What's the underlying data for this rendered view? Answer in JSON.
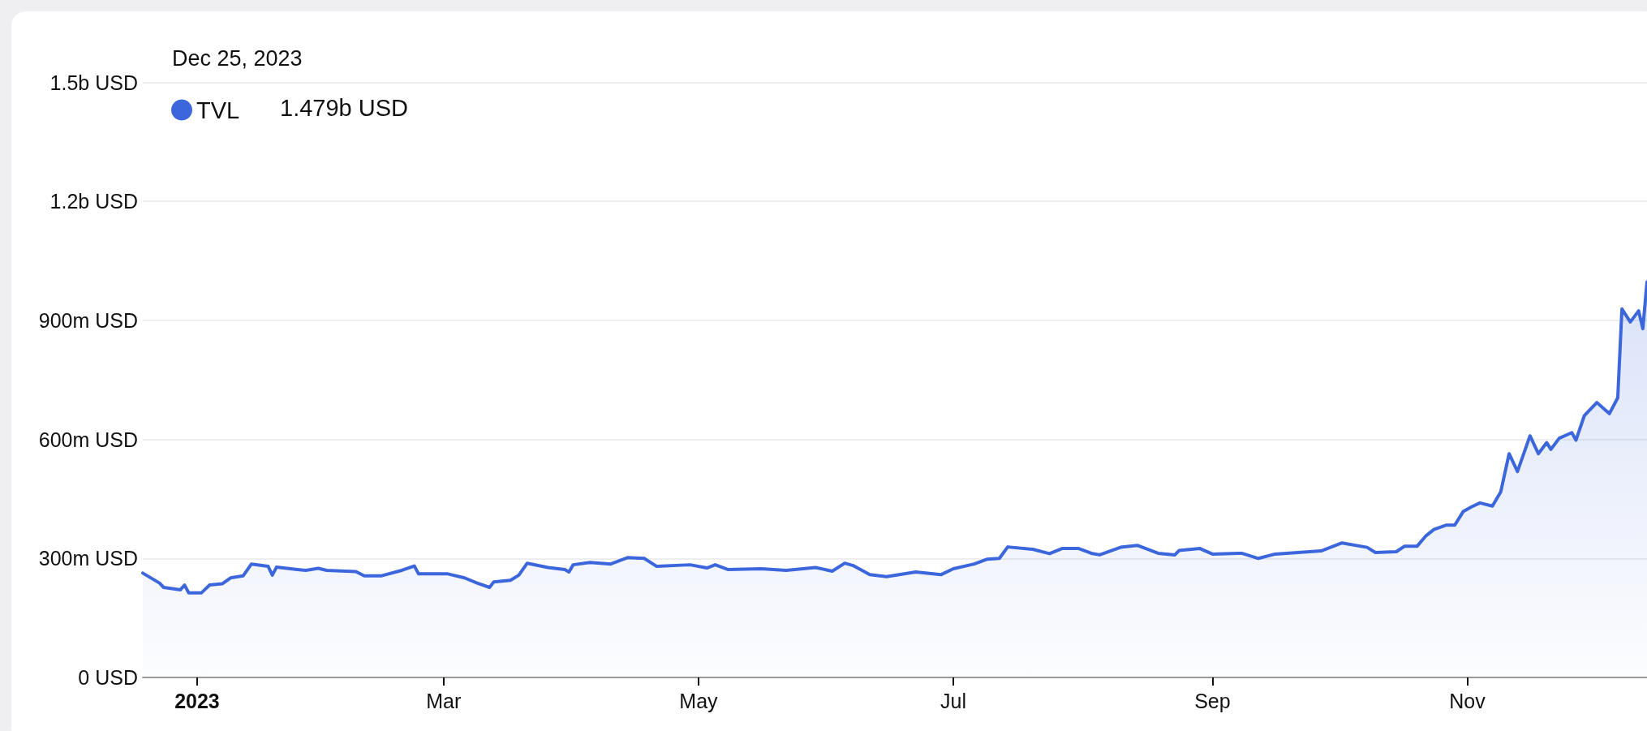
{
  "chart_data": {
    "type": "area",
    "annotations": [
      "Dec 25, 2023",
      "1.479b USD"
    ],
    "x": [
      "2022-12-19",
      "2022-12-23",
      "2022-12-24",
      "2022-12-28",
      "2022-12-29",
      "2022-12-30",
      "2023-01-02",
      "2023-01-04",
      "2023-01-07",
      "2023-01-09",
      "2023-01-12",
      "2023-01-14",
      "2023-01-18",
      "2023-01-19",
      "2023-01-20",
      "2023-01-25",
      "2023-01-27",
      "2023-01-30",
      "2023-02-01",
      "2023-02-08",
      "2023-02-10",
      "2023-02-14",
      "2023-02-19",
      "2023-02-22",
      "2023-02-23",
      "2023-03-02",
      "2023-03-06",
      "2023-03-09",
      "2023-03-12",
      "2023-03-13",
      "2023-03-17",
      "2023-03-19",
      "2023-03-21",
      "2023-03-26",
      "2023-03-30",
      "2023-03-31",
      "2023-04-01",
      "2023-04-05",
      "2023-04-10",
      "2023-04-14",
      "2023-04-18",
      "2023-04-21",
      "2023-04-29",
      "2023-05-03",
      "2023-05-05",
      "2023-05-08",
      "2023-05-16",
      "2023-05-22",
      "2023-05-29",
      "2023-06-02",
      "2023-06-05",
      "2023-06-07",
      "2023-06-11",
      "2023-06-15",
      "2023-06-22",
      "2023-06-28",
      "2023-07-01",
      "2023-07-06",
      "2023-07-09",
      "2023-07-12",
      "2023-07-14",
      "2023-07-20",
      "2023-07-24",
      "2023-07-27",
      "2023-07-31",
      "2023-08-03",
      "2023-08-05",
      "2023-08-10",
      "2023-08-14",
      "2023-08-19",
      "2023-08-23",
      "2023-08-24",
      "2023-08-29",
      "2023-09-01",
      "2023-09-08",
      "2023-09-12",
      "2023-09-16",
      "2023-09-27",
      "2023-10-02",
      "2023-10-08",
      "2023-10-10",
      "2023-10-15",
      "2023-10-17",
      "2023-10-20",
      "2023-10-22",
      "2023-10-24",
      "2023-10-27",
      "2023-10-29",
      "2023-10-31",
      "2023-11-02",
      "2023-11-04",
      "2023-11-07",
      "2023-11-09",
      "2023-11-11",
      "2023-11-13",
      "2023-11-16",
      "2023-11-18",
      "2023-11-20",
      "2023-11-21",
      "2023-11-23",
      "2023-11-26",
      "2023-11-27",
      "2023-11-29",
      "2023-12-02",
      "2023-12-05",
      "2023-12-07",
      "2023-12-08",
      "2023-12-10",
      "2023-12-12",
      "2023-12-13",
      "2023-12-14"
    ],
    "series": [
      {
        "name": "TVL",
        "color": "#3b66dc",
        "values": [
          263000000,
          238000000,
          227000000,
          221000000,
          233000000,
          213000000,
          213000000,
          233000000,
          236000000,
          251000000,
          256000000,
          286000000,
          280000000,
          258000000,
          278000000,
          272000000,
          270000000,
          275000000,
          270000000,
          267000000,
          256000000,
          256000000,
          270000000,
          281000000,
          261000000,
          261000000,
          251000000,
          238000000,
          227000000,
          241000000,
          245000000,
          258000000,
          288000000,
          277000000,
          272000000,
          266000000,
          284000000,
          290000000,
          286000000,
          302000000,
          300000000,
          280000000,
          284000000,
          276000000,
          284000000,
          272000000,
          274000000,
          270000000,
          277000000,
          268000000,
          288000000,
          282000000,
          259000000,
          254000000,
          266000000,
          259000000,
          274000000,
          286000000,
          298000000,
          300000000,
          329000000,
          323000000,
          312000000,
          325000000,
          325000000,
          313000000,
          309000000,
          328000000,
          333000000,
          313000000,
          309000000,
          320000000,
          325000000,
          311000000,
          313000000,
          300000000,
          311000000,
          319000000,
          339000000,
          328000000,
          315000000,
          317000000,
          331000000,
          331000000,
          356000000,
          373000000,
          384000000,
          384000000,
          418000000,
          430000000,
          440000000,
          432000000,
          468000000,
          564000000,
          519000000,
          609000000,
          564000000,
          592000000,
          575000000,
          603000000,
          617000000,
          598000000,
          660000000,
          693000000,
          665000000,
          705000000,
          929000000,
          896000000,
          924000000,
          879000000,
          997000000
        ]
      }
    ],
    "xlim": [
      "2022-12-19",
      "2023-12-14"
    ],
    "xticks": [
      {
        "value": "2023-01-01",
        "label": "2023"
      },
      {
        "value": "2023-03-01",
        "label": "Mar"
      },
      {
        "value": "2023-05-01",
        "label": "May"
      },
      {
        "value": "2023-07-01",
        "label": "Jul"
      },
      {
        "value": "2023-09-01",
        "label": "Sep"
      },
      {
        "value": "2023-11-01",
        "label": "Nov"
      }
    ],
    "ylim": [
      0,
      1500000000
    ],
    "yticks": [
      {
        "value": 0,
        "label": "0 USD"
      },
      {
        "value": 300000000,
        "label": "300m USD"
      },
      {
        "value": 600000000,
        "label": "600m USD"
      },
      {
        "value": 900000000,
        "label": "900m USD"
      },
      {
        "value": 1200000000,
        "label": "1.2b USD"
      },
      {
        "value": 1500000000,
        "label": "1.5b USD"
      }
    ],
    "grid": "y",
    "legend": "top left",
    "marker": "none",
    "line_style": "solid"
  }
}
